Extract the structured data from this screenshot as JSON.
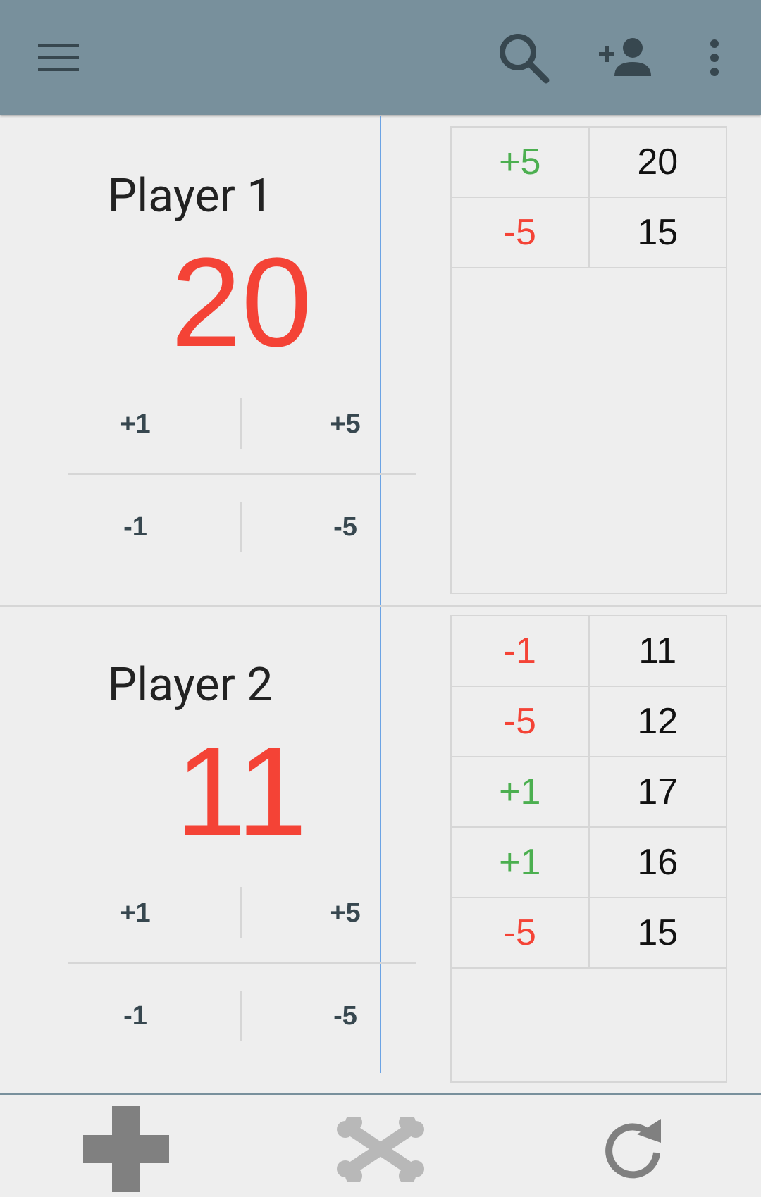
{
  "players": [
    {
      "name": "Player 1",
      "score": "20",
      "buttons": {
        "plus1": "+1",
        "plus5": "+5",
        "minus1": "-1",
        "minus5": "-5"
      },
      "history": [
        {
          "delta": "+5",
          "total": "20",
          "sign": "pos"
        },
        {
          "delta": "-5",
          "total": "15",
          "sign": "neg"
        }
      ]
    },
    {
      "name": "Player 2",
      "score": "11",
      "buttons": {
        "plus1": "+1",
        "plus5": "+5",
        "minus1": "-1",
        "minus5": "-5"
      },
      "history": [
        {
          "delta": "-1",
          "total": "11",
          "sign": "neg"
        },
        {
          "delta": "-5",
          "total": "12",
          "sign": "neg"
        },
        {
          "delta": "+1",
          "total": "17",
          "sign": "pos"
        },
        {
          "delta": "+1",
          "total": "16",
          "sign": "pos"
        },
        {
          "delta": "-5",
          "total": "15",
          "sign": "neg"
        }
      ]
    }
  ],
  "icons": {
    "menu": "menu-icon",
    "search": "search-icon",
    "add_person": "add-person-icon",
    "more": "more-vert-icon",
    "add": "plus-icon",
    "remove": "crossbones-icon",
    "reset": "refresh-icon"
  },
  "colors": {
    "appbar": "#78909c",
    "positive": "#4caf50",
    "negative": "#f44336",
    "button_text": "#37474f"
  }
}
